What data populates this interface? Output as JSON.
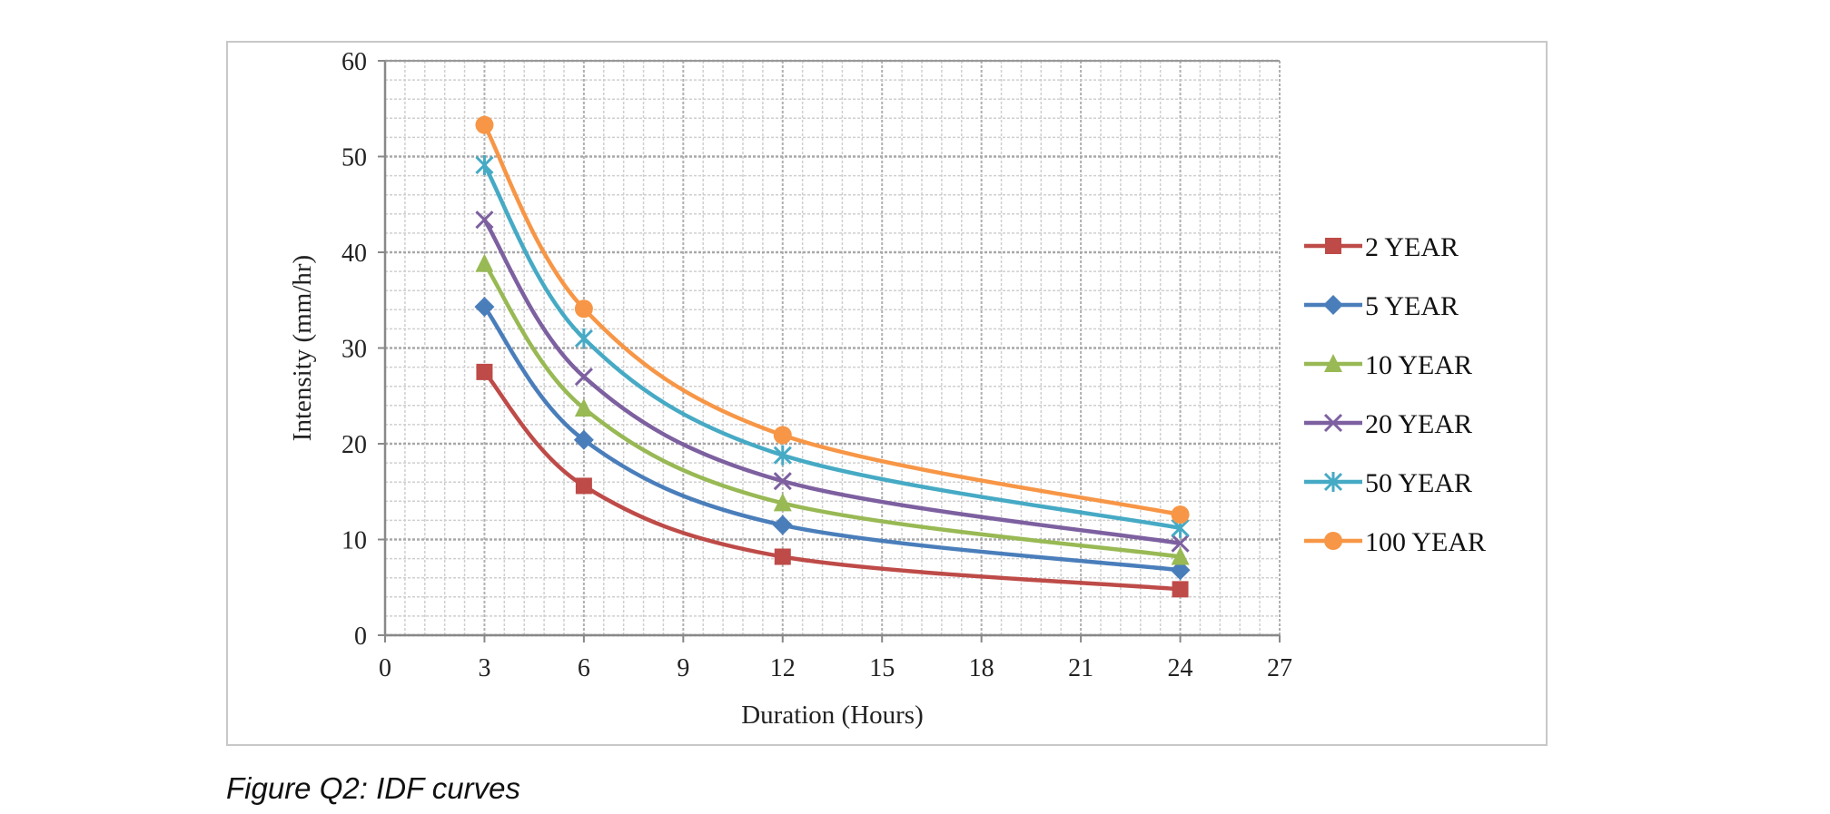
{
  "caption": "Figure Q2: IDF curves",
  "chart_data": {
    "type": "line",
    "title": "",
    "xlabel": "Duration (Hours)",
    "ylabel": "Intensity (mm/hr)",
    "xlim": [
      0,
      27
    ],
    "ylim": [
      0,
      60
    ],
    "xticks": [
      0,
      3,
      6,
      9,
      12,
      15,
      18,
      21,
      24,
      27
    ],
    "yticks": [
      0,
      10,
      20,
      30,
      40,
      50,
      60
    ],
    "grid": true,
    "smooth": true,
    "legend_position": "right",
    "x": [
      3,
      6,
      12,
      24
    ],
    "series": [
      {
        "name": "2 YEAR",
        "values": [
          27.5,
          15.6,
          8.2,
          4.8
        ],
        "color": "#be4b48",
        "marker": "square"
      },
      {
        "name": "5 YEAR",
        "values": [
          34.3,
          20.4,
          11.5,
          6.8
        ],
        "color": "#4a7ebb",
        "marker": "diamond"
      },
      {
        "name": "10 YEAR",
        "values": [
          38.8,
          23.7,
          13.8,
          8.2
        ],
        "color": "#98b954",
        "marker": "triangle"
      },
      {
        "name": "20 YEAR",
        "values": [
          43.4,
          27.0,
          16.1,
          9.6
        ],
        "color": "#7d60a0",
        "marker": "x"
      },
      {
        "name": "50 YEAR",
        "values": [
          49.1,
          31.0,
          18.8,
          11.2
        ],
        "color": "#46aac5",
        "marker": "star"
      },
      {
        "name": "100 YEAR",
        "values": [
          53.3,
          34.1,
          20.9,
          12.6
        ],
        "color": "#f79646",
        "marker": "circle"
      }
    ]
  }
}
